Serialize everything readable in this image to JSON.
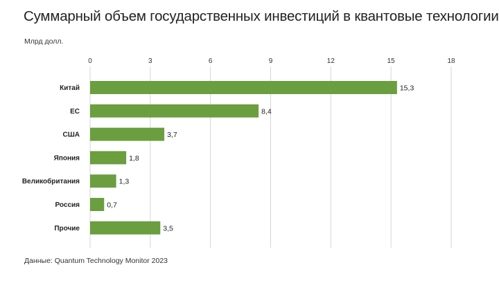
{
  "header": {
    "title": "Суммарный объем государственных инвестиций в квантовые технологии",
    "unit": "Млрд долл."
  },
  "footer": {
    "source": "Данные: Quantum Technology Monitor 2023"
  },
  "colors": {
    "bar": "#6a9e3f",
    "grid": "#d6d6d6"
  },
  "chart_data": {
    "type": "bar",
    "orientation": "horizontal",
    "title": "Суммарный объем государственных инвестиций в квантовые технологии",
    "xlabel": "Млрд долл.",
    "ylabel": "",
    "categories": [
      "Китай",
      "ЕС",
      "США",
      "Япония",
      "Великобритания",
      "Россия",
      "Прочие"
    ],
    "values": [
      15.3,
      8.4,
      3.7,
      1.8,
      1.3,
      0.7,
      3.5
    ],
    "value_labels": [
      "15,3",
      "8,4",
      "3,7",
      "1,8",
      "1,3",
      "0,7",
      "3,5"
    ],
    "xlim": [
      0,
      18
    ],
    "xticks": [
      0,
      3,
      6,
      9,
      12,
      15,
      18
    ],
    "xtick_labels": [
      "0",
      "3",
      "6",
      "9",
      "12",
      "15",
      "18"
    ],
    "grid": true,
    "x_axis_position": "top",
    "legend": "none"
  }
}
